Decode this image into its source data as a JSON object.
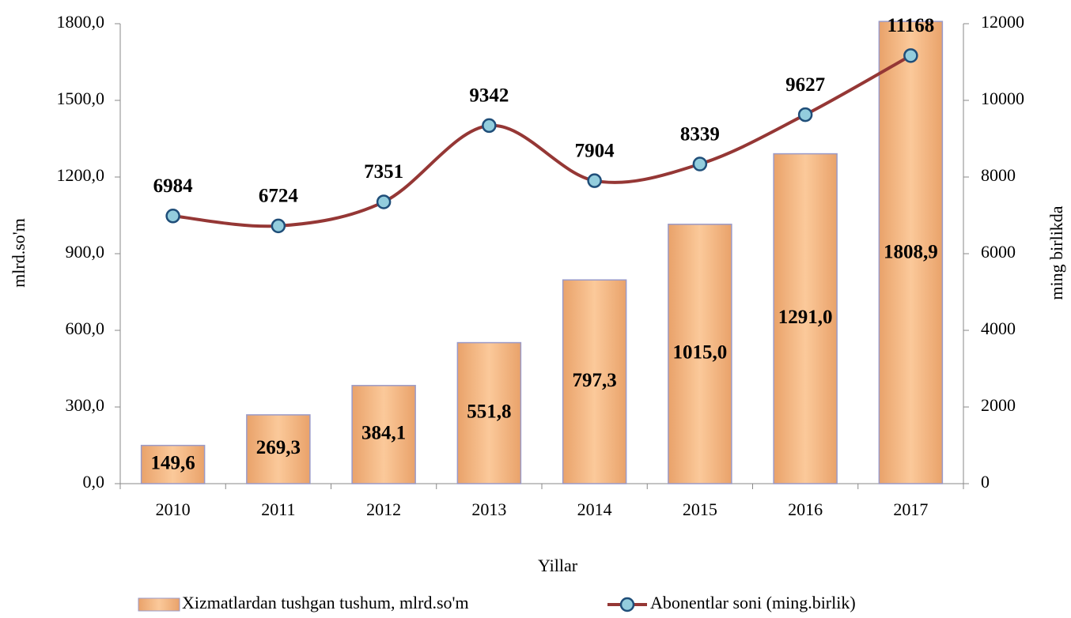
{
  "chart_data": {
    "type": "bar",
    "categories": [
      "2010",
      "2011",
      "2012",
      "2013",
      "2014",
      "2015",
      "2016",
      "2017"
    ],
    "series": [
      {
        "name": "Xizmatlardan tushgan tushum, mlrd.so'm",
        "type": "bar",
        "color": "#f6b87e",
        "values": [
          149.6,
          269.3,
          384.1,
          551.8,
          797.3,
          1015.0,
          1291.0,
          1808.9
        ],
        "value_labels": [
          "149,6",
          "269,3",
          "384,1",
          "551,8",
          "797,3",
          "1015,0",
          "1291,0",
          "1808,9"
        ]
      },
      {
        "name": "Abonentlar soni (ming.birlik)",
        "type": "line",
        "axis": "y2",
        "color": "#953735",
        "values": [
          6984,
          6724,
          7351,
          9342,
          7904,
          8339,
          9627,
          11168
        ]
      }
    ],
    "x_label": "Yillar",
    "y_label": "mlrd.so'm",
    "y2_label": "ming birlikda",
    "ylim": [
      0,
      1800
    ],
    "yticks": [
      {
        "value": 0,
        "label": "0,0"
      },
      {
        "value": 300,
        "label": "300,0"
      },
      {
        "value": 600,
        "label": "600,0"
      },
      {
        "value": 900,
        "label": "900,0"
      },
      {
        "value": 1200,
        "label": "1200,0"
      },
      {
        "value": 1500,
        "label": "1500,0"
      },
      {
        "value": 1800,
        "label": "1800,0"
      }
    ],
    "y2lim": [
      0,
      12000
    ],
    "y2ticks": [
      0,
      2000,
      4000,
      6000,
      8000,
      10000,
      12000
    ],
    "legend": "bottom"
  }
}
